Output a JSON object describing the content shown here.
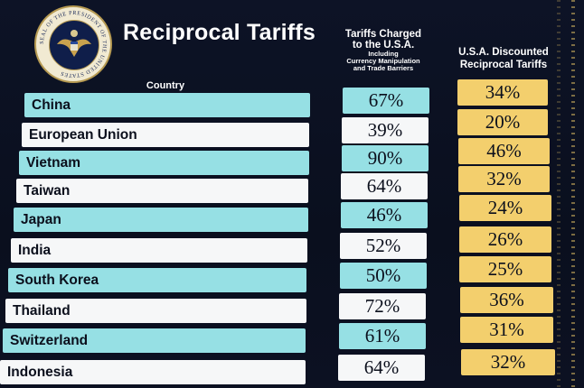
{
  "header": {
    "title": "Reciprocal Tariffs",
    "country_label": "Country",
    "charged_label_line1": "Tariffs Charged",
    "charged_label_line2": "to the U.S.A.",
    "charged_sub_line1": "Including",
    "charged_sub_line2": "Currency Manipulation",
    "charged_sub_line3": "and Trade Barriers",
    "discount_label_line1": "U.S.A. Discounted",
    "discount_label_line2": "Reciprocal Tariffs",
    "seal_text": "SEAL OF THE PRESIDENT OF THE UNITED STATES"
  },
  "colors": {
    "teal": "#96e0e4",
    "white": "#f6f7f8",
    "gold": "#f3cf6d",
    "background": "#0b1020"
  },
  "rows": [
    {
      "country": "China",
      "charged": "67%",
      "discounted": "34%"
    },
    {
      "country": "European Union",
      "charged": "39%",
      "discounted": "20%"
    },
    {
      "country": "Vietnam",
      "charged": "90%",
      "discounted": "46%"
    },
    {
      "country": "Taiwan",
      "charged": "64%",
      "discounted": "32%"
    },
    {
      "country": "Japan",
      "charged": "46%",
      "discounted": "24%"
    },
    {
      "country": "India",
      "charged": "52%",
      "discounted": "26%"
    },
    {
      "country": "South Korea",
      "charged": "50%",
      "discounted": "25%"
    },
    {
      "country": "Thailand",
      "charged": "72%",
      "discounted": "36%"
    },
    {
      "country": "Switzerland",
      "charged": "61%",
      "discounted": "31%"
    },
    {
      "country": "Indonesia",
      "charged": "64%",
      "discounted": "32%"
    }
  ]
}
